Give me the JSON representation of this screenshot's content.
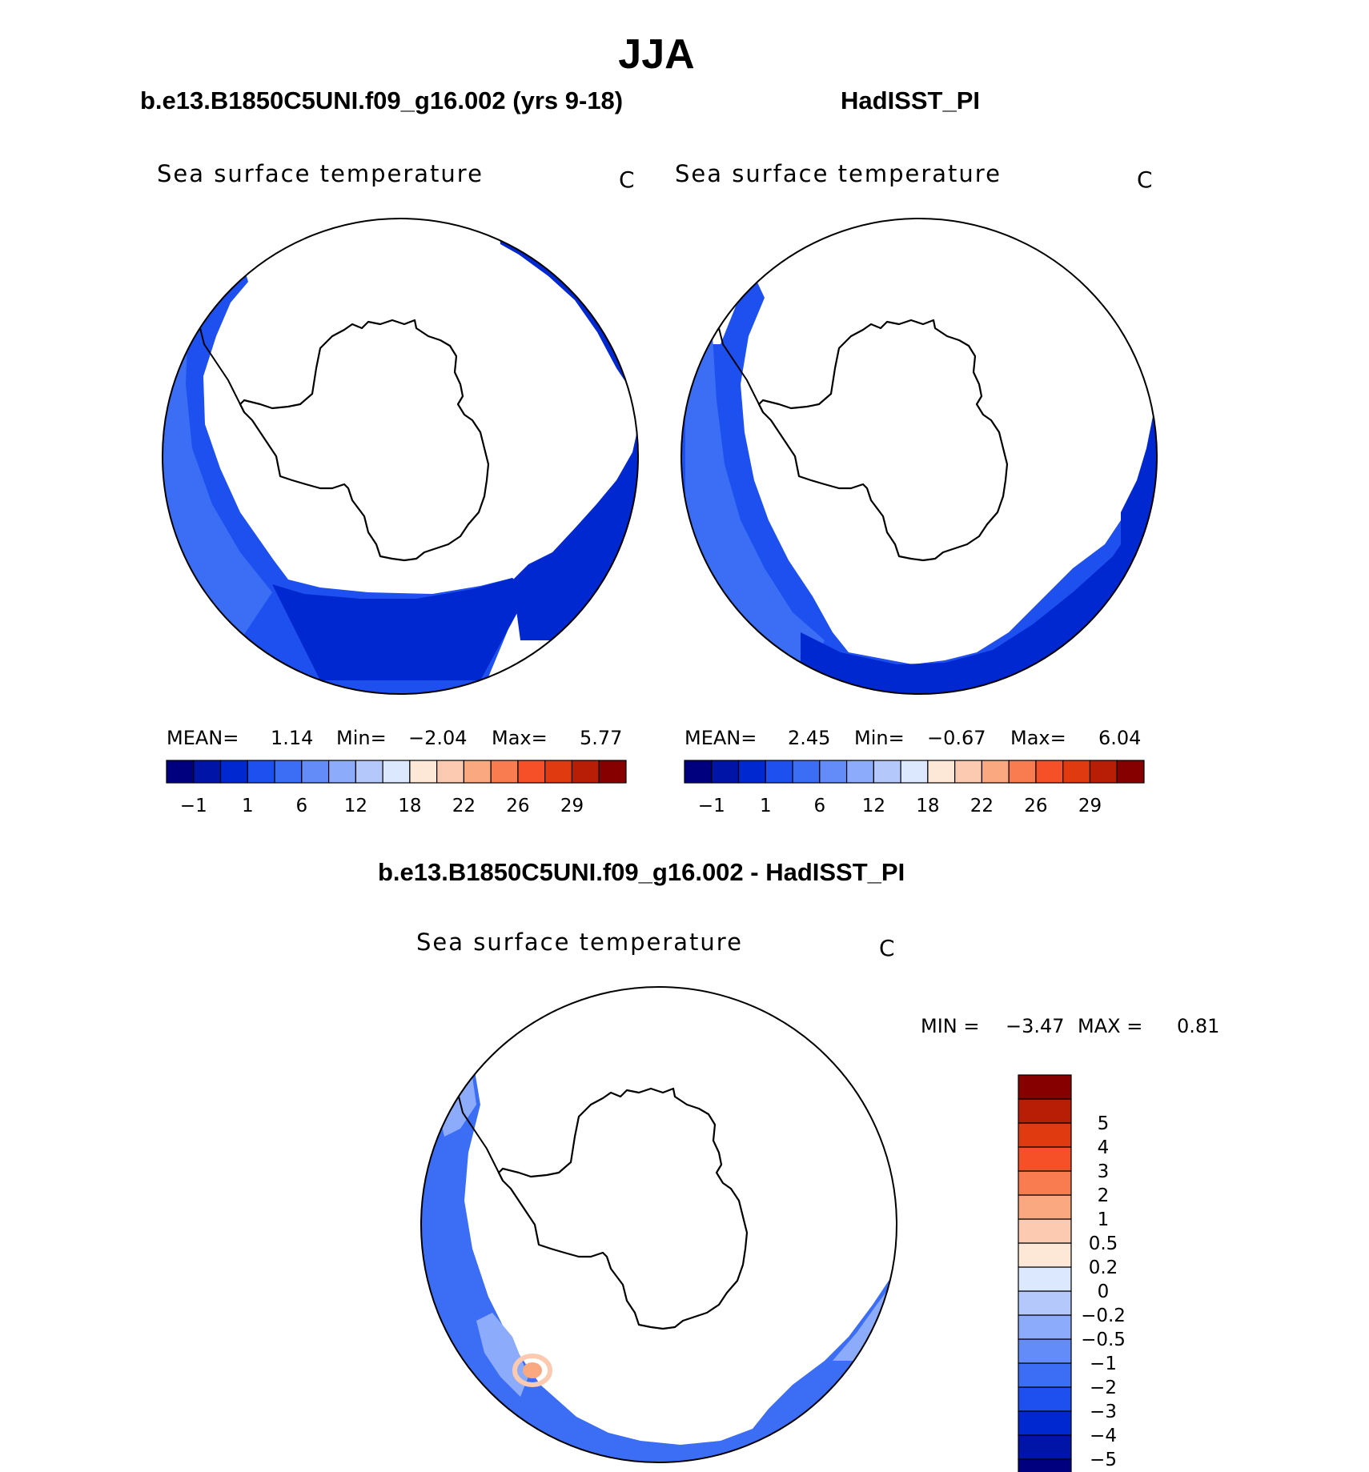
{
  "figure": {
    "title": "JJA"
  },
  "panels": [
    {
      "title": "b.e13.B1850C5UNI.f09_g16.002 (yrs 9-18)",
      "subtitle": "Sea surface temperature",
      "units": "C",
      "stats": {
        "mean_label": "MEAN=",
        "mean": "1.14",
        "min_label": "Min=",
        "min": "−2.04",
        "max_label": "Max=",
        "max": "5.77"
      }
    },
    {
      "title": "HadISST_PI",
      "subtitle": "Sea surface temperature",
      "units": "C",
      "stats": {
        "mean_label": "MEAN=",
        "mean": "2.45",
        "min_label": "Min=",
        "min": "−0.67",
        "max_label": "Max=",
        "max": "6.04"
      }
    },
    {
      "title": "b.e13.B1850C5UNI.f09_g16.002 - HadISST_PI",
      "subtitle": "Sea surface temperature",
      "units": "C",
      "stats": {
        "min_label": "MIN =",
        "min": "−3.47",
        "max_label": "MAX =",
        "max": "0.81"
      }
    }
  ],
  "colorbar_abs": {
    "colors": [
      "#00007f",
      "#0014a8",
      "#0028d0",
      "#1e50f0",
      "#3c6ef5",
      "#648cf8",
      "#8cabfa",
      "#b4c8fc",
      "#dce8fe",
      "#fde8d8",
      "#fccab0",
      "#faa880",
      "#f87c50",
      "#f55028",
      "#e03a10",
      "#b81e06",
      "#860000"
    ],
    "labels": [
      "−1",
      "1",
      "6",
      "12",
      "18",
      "22",
      "26",
      "29"
    ]
  },
  "colorbar_diff": {
    "colors": [
      "#00007f",
      "#0014a8",
      "#0028d0",
      "#1e50f0",
      "#3c6ef5",
      "#648cf8",
      "#8cabfa",
      "#b4c8fc",
      "#dce8fe",
      "#fde8d8",
      "#fccab0",
      "#faa880",
      "#f87c50",
      "#f55028",
      "#e03a10",
      "#b81e06",
      "#860000"
    ],
    "labels": [
      "−5",
      "−4",
      "−3",
      "−2",
      "−1",
      "−0.5",
      "−0.2",
      "0",
      "0.2",
      "0.5",
      "1",
      "2",
      "3",
      "4",
      "5"
    ]
  },
  "colors": {
    "ocean_dark": "#0028d0",
    "ocean_mid": "#1e50f0",
    "ocean_light": "#3c6ef5",
    "ocean_pale": "#8cabfa",
    "warm_anomaly": "#faa880",
    "coastline": "#000000"
  }
}
